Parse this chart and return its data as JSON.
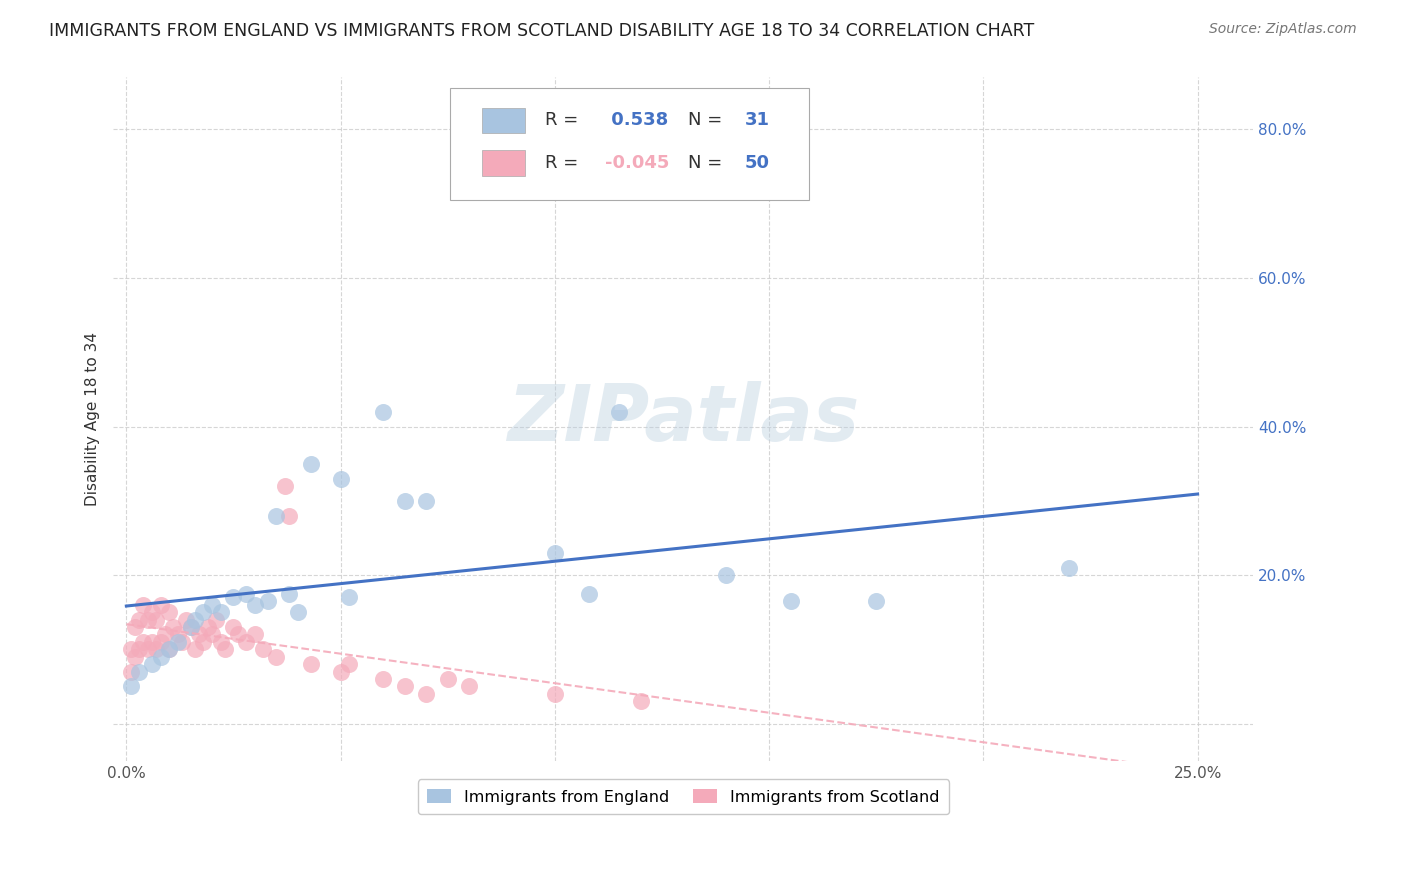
{
  "title": "IMMIGRANTS FROM ENGLAND VS IMMIGRANTS FROM SCOTLAND DISABILITY AGE 18 TO 34 CORRELATION CHART",
  "source": "Source: ZipAtlas.com",
  "ylabel": "Disability Age 18 to 34",
  "watermark": "ZIPatlas",
  "england_R": 0.538,
  "england_N": 31,
  "scotland_R": -0.045,
  "scotland_N": 50,
  "xlim": [
    -0.003,
    0.263
  ],
  "ylim": [
    -0.05,
    0.87
  ],
  "england_color": "#A8C4E0",
  "scotland_color": "#F4AABA",
  "england_line_color": "#4472C4",
  "scotland_line_color": "#F4AABA",
  "axis_tick_color": "#4472C4",
  "background_color": "#FFFFFF",
  "grid_color": "#CCCCCC",
  "england_x": [
    0.001,
    0.003,
    0.006,
    0.008,
    0.01,
    0.012,
    0.015,
    0.016,
    0.018,
    0.02,
    0.022,
    0.025,
    0.028,
    0.03,
    0.033,
    0.035,
    0.038,
    0.04,
    0.043,
    0.05,
    0.052,
    0.06,
    0.065,
    0.07,
    0.1,
    0.108,
    0.115,
    0.14,
    0.155,
    0.175,
    0.22
  ],
  "england_y": [
    0.05,
    0.07,
    0.08,
    0.09,
    0.1,
    0.11,
    0.13,
    0.14,
    0.15,
    0.16,
    0.15,
    0.17,
    0.175,
    0.16,
    0.165,
    0.28,
    0.175,
    0.15,
    0.35,
    0.33,
    0.17,
    0.42,
    0.3,
    0.3,
    0.23,
    0.175,
    0.42,
    0.2,
    0.165,
    0.165,
    0.21
  ],
  "scotland_x": [
    0.001,
    0.001,
    0.002,
    0.002,
    0.003,
    0.003,
    0.004,
    0.004,
    0.005,
    0.005,
    0.006,
    0.006,
    0.007,
    0.007,
    0.008,
    0.008,
    0.009,
    0.01,
    0.01,
    0.011,
    0.012,
    0.013,
    0.014,
    0.015,
    0.016,
    0.017,
    0.018,
    0.019,
    0.02,
    0.021,
    0.022,
    0.023,
    0.025,
    0.026,
    0.028,
    0.03,
    0.032,
    0.035,
    0.037,
    0.038,
    0.043,
    0.05,
    0.052,
    0.06,
    0.065,
    0.07,
    0.075,
    0.08,
    0.1,
    0.12
  ],
  "scotland_y": [
    0.07,
    0.1,
    0.09,
    0.13,
    0.1,
    0.14,
    0.11,
    0.16,
    0.1,
    0.14,
    0.11,
    0.15,
    0.1,
    0.14,
    0.11,
    0.16,
    0.12,
    0.1,
    0.15,
    0.13,
    0.12,
    0.11,
    0.14,
    0.13,
    0.1,
    0.12,
    0.11,
    0.13,
    0.12,
    0.14,
    0.11,
    0.1,
    0.13,
    0.12,
    0.11,
    0.12,
    0.1,
    0.09,
    0.32,
    0.28,
    0.08,
    0.07,
    0.08,
    0.06,
    0.05,
    0.04,
    0.06,
    0.05,
    0.04,
    0.03
  ],
  "title_fontsize": 12.5,
  "axis_label_fontsize": 11,
  "tick_fontsize": 11,
  "legend_fontsize": 13
}
